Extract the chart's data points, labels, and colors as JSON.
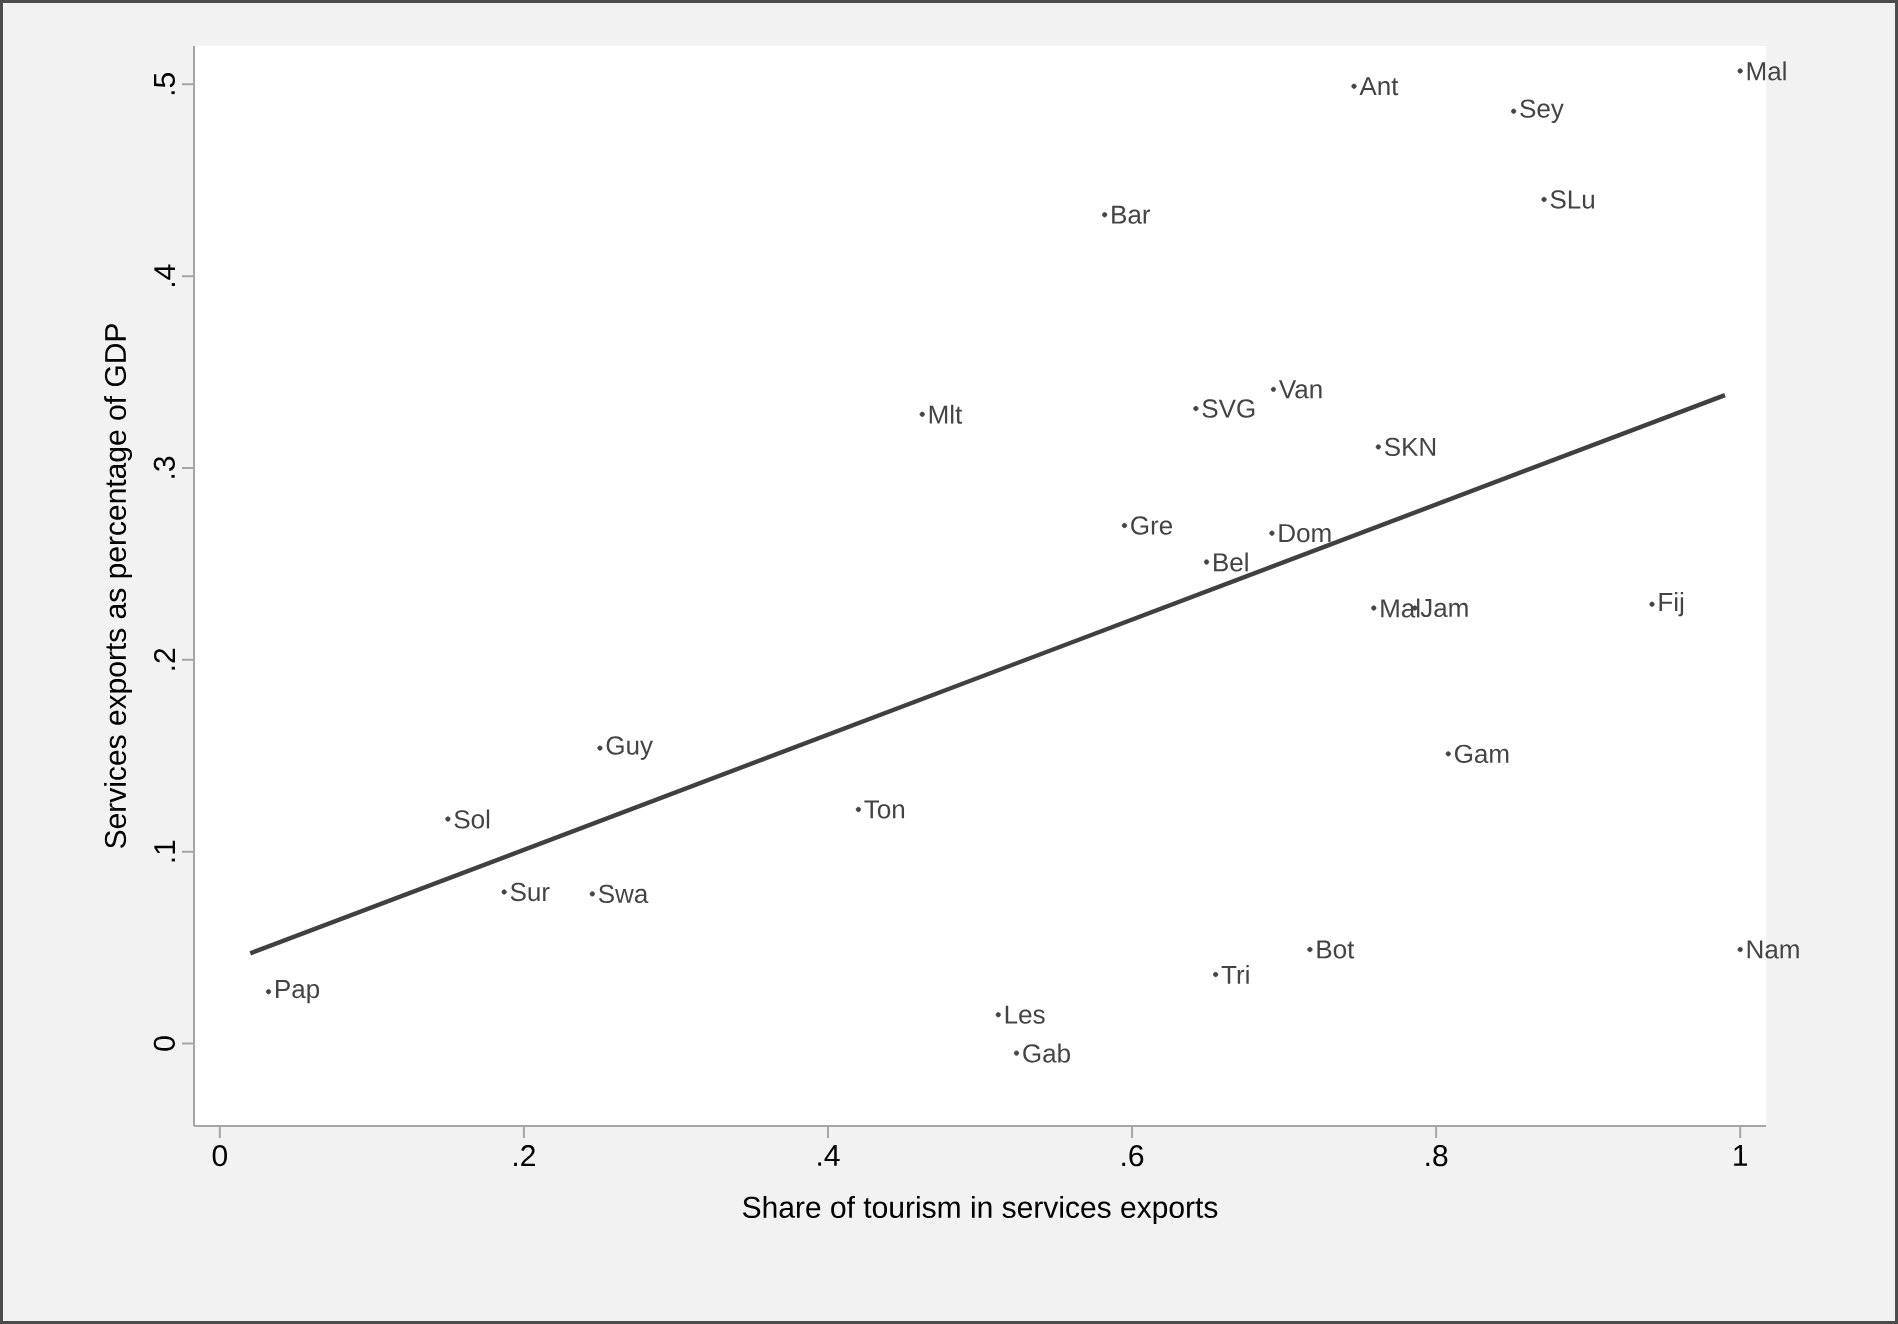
{
  "chart_data": {
    "type": "scatter",
    "xlabel": "Share of tourism in services exports",
    "ylabel": "Services exports as percentage of GDP",
    "xlim": [
      -0.017,
      1.017
    ],
    "ylim": [
      -0.043,
      0.52
    ],
    "xticks": [
      {
        "value": 0,
        "label": "0"
      },
      {
        "value": 0.2,
        "label": ".2"
      },
      {
        "value": 0.4,
        "label": ".4"
      },
      {
        "value": 0.6,
        "label": ".6"
      },
      {
        "value": 0.8,
        "label": ".8"
      },
      {
        "value": 1,
        "label": "1"
      }
    ],
    "yticks": [
      {
        "value": 0,
        "label": "0"
      },
      {
        "value": 0.1,
        "label": ".1"
      },
      {
        "value": 0.2,
        "label": ".2"
      },
      {
        "value": 0.3,
        "label": ".3"
      },
      {
        "value": 0.4,
        "label": ".4"
      },
      {
        "value": 0.5,
        "label": ".5"
      }
    ],
    "series": [
      {
        "color": "#444444",
        "marker": "circle",
        "x": [
          0.032,
          0.15,
          0.187,
          0.245,
          0.25,
          0.42,
          0.512,
          0.524,
          0.655,
          0.717,
          1.0,
          0.808,
          1.0,
          0.746,
          0.851,
          0.871,
          0.582,
          0.462,
          0.642,
          0.693,
          0.762,
          0.595,
          0.649,
          0.692,
          0.759,
          0.786,
          0.942
        ],
        "values": [
          0.027,
          0.117,
          0.079,
          0.078,
          0.154,
          0.122,
          0.015,
          -0.005,
          0.036,
          0.049,
          0.049,
          0.151,
          0.507,
          0.499,
          0.486,
          0.44,
          0.432,
          0.328,
          0.331,
          0.341,
          0.311,
          0.27,
          0.251,
          0.266,
          0.227,
          0.227,
          0.229
        ],
        "value_labels": [
          "Pap",
          "Sol",
          "Sur",
          "Swa",
          "Guy",
          "Ton",
          "Les",
          "Gab",
          "Tri",
          "Bot",
          "Nam",
          "Gam",
          "Mal",
          "Ant",
          "Sey",
          "SLu",
          "Bar",
          "Mlt",
          "SVG",
          "Van",
          "SKN",
          "Gre",
          "Bel",
          "Dom",
          "Mal",
          "Jam",
          "Fij"
        ]
      },
      {
        "type": "line",
        "color": "#404040",
        "line_style": "solid",
        "x": [
          0.02,
          0.99
        ],
        "values": [
          0.047,
          0.338
        ]
      }
    ]
  }
}
